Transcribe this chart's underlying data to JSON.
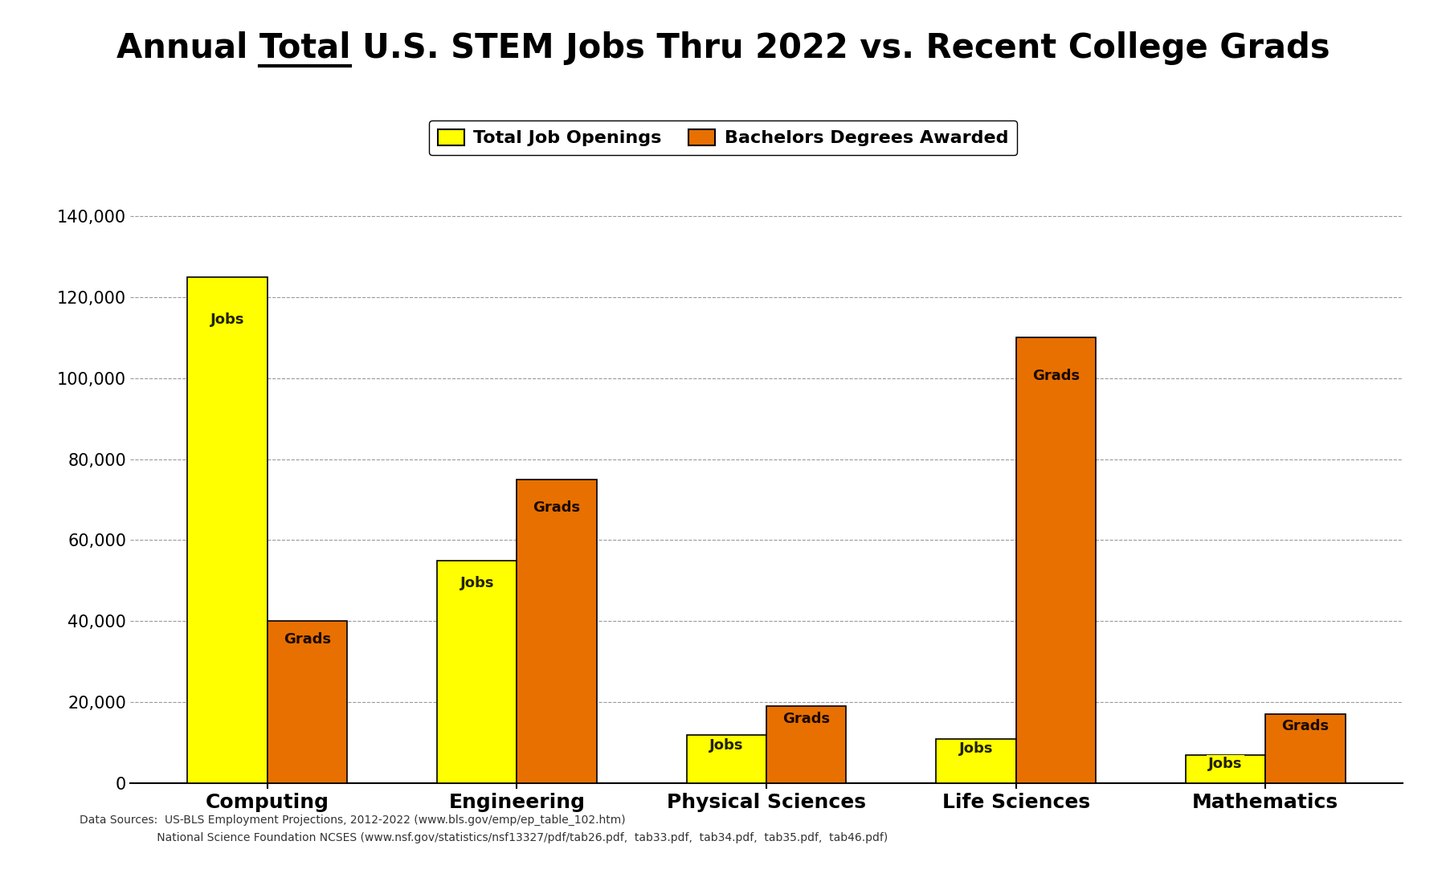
{
  "title": "Annual Total U.S. STEM Jobs Thru 2022 vs. Recent College Grads",
  "categories": [
    "Computing",
    "Engineering",
    "Physical Sciences",
    "Life Sciences",
    "Mathematics"
  ],
  "jobs": [
    125000,
    55000,
    12000,
    11000,
    7000
  ],
  "grads": [
    40000,
    75000,
    19000,
    110000,
    17000
  ],
  "jobs_color": "#FFFF00",
  "grads_color": "#E87000",
  "jobs_label": "Total Job Openings",
  "grads_label": "Bachelors Degrees Awarded",
  "bar_label_jobs": "Jobs",
  "bar_label_grads": "Grads",
  "ylim": [
    0,
    145000
  ],
  "yticks": [
    0,
    20000,
    40000,
    60000,
    80000,
    100000,
    120000,
    140000
  ],
  "background_color": "#ffffff",
  "grid_color": "#999999",
  "footnote_line1": "Data Sources:  US-BLS Employment Projections, 2012-2022 (www.bls.gov/emp/ep_table_102.htm)",
  "footnote_line2": "                      National Science Foundation NCSES (www.nsf.gov/statistics/nsf13327/pdf/tab26.pdf,  tab33.pdf,  tab34.pdf,  tab35.pdf,  tab46.pdf)",
  "bar_width": 0.32,
  "bar_edge_color": "#000000",
  "bar_edge_width": 1.2,
  "title_fontsize": 30,
  "legend_fontsize": 16,
  "xtick_fontsize": 18,
  "ytick_fontsize": 15,
  "bar_label_fontsize": 13,
  "footnote_fontsize": 10
}
